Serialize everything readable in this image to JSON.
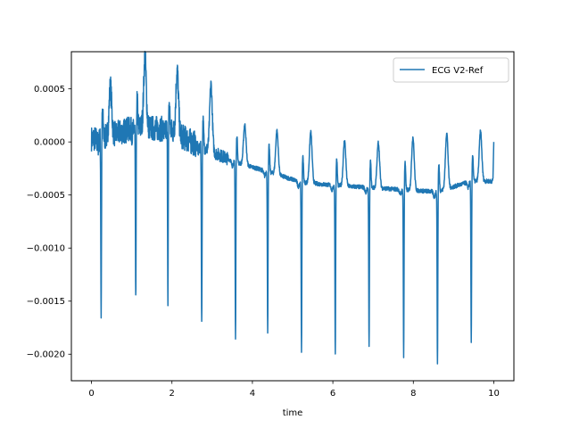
{
  "chart_data": {
    "type": "line",
    "title": "",
    "xlabel": "time",
    "ylabel": "",
    "xlim": [
      -0.5,
      10.5
    ],
    "ylim": [
      -0.00225,
      0.00085
    ],
    "x_ticks": [
      0,
      2,
      4,
      6,
      8,
      10
    ],
    "x_tick_labels": [
      "0",
      "2",
      "4",
      "6",
      "8",
      "10"
    ],
    "y_ticks": [
      0.0005,
      0.0,
      -0.0005,
      -0.001,
      -0.0015,
      -0.002
    ],
    "y_tick_labels": [
      "0.0005",
      "0.0000",
      "−0.0005",
      "−0.0010",
      "−0.0015",
      "−0.0020"
    ],
    "grid": false,
    "legend_position": "top-right",
    "series": [
      {
        "name": "ECG V2-Ref",
        "color": "#1f77b4",
        "beats": [
          {
            "t": 0.24,
            "baseline": 3e-05,
            "r_peak": -0.00163,
            "t_wave_peak": 0.00049
          },
          {
            "t": 1.1,
            "baseline": 0.00014,
            "r_peak": -0.00157,
            "t_wave_peak": 0.0008
          },
          {
            "t": 1.9,
            "baseline": 0.00012,
            "r_peak": -0.00144,
            "t_wave_peak": 0.00072
          },
          {
            "t": 2.74,
            "baseline": -5e-05,
            "r_peak": -0.00174,
            "t_wave_peak": 0.00058
          },
          {
            "t": 3.58,
            "baseline": -0.00019,
            "r_peak": -0.00187,
            "t_wave_peak": 0.00019
          },
          {
            "t": 4.38,
            "baseline": -0.00028,
            "r_peak": -0.0018,
            "t_wave_peak": 0.00013
          },
          {
            "t": 5.22,
            "baseline": -0.00038,
            "r_peak": -0.00199,
            "t_wave_peak": 0.0001
          },
          {
            "t": 6.06,
            "baseline": -0.00041,
            "r_peak": -0.00202,
            "t_wave_peak": 2e-05
          },
          {
            "t": 6.9,
            "baseline": -0.00043,
            "r_peak": -0.00195,
            "t_wave_peak": 0.0
          },
          {
            "t": 7.76,
            "baseline": -0.00045,
            "r_peak": -0.00204,
            "t_wave_peak": 5e-05
          },
          {
            "t": 8.6,
            "baseline": -0.00047,
            "r_peak": -0.00211,
            "t_wave_peak": 6e-05
          },
          {
            "t": 9.44,
            "baseline": -0.00037,
            "r_peak": -0.00191,
            "t_wave_peak": 0.0001
          }
        ],
        "end_point": {
          "t": 10.0,
          "value": 0.0
        }
      }
    ]
  }
}
